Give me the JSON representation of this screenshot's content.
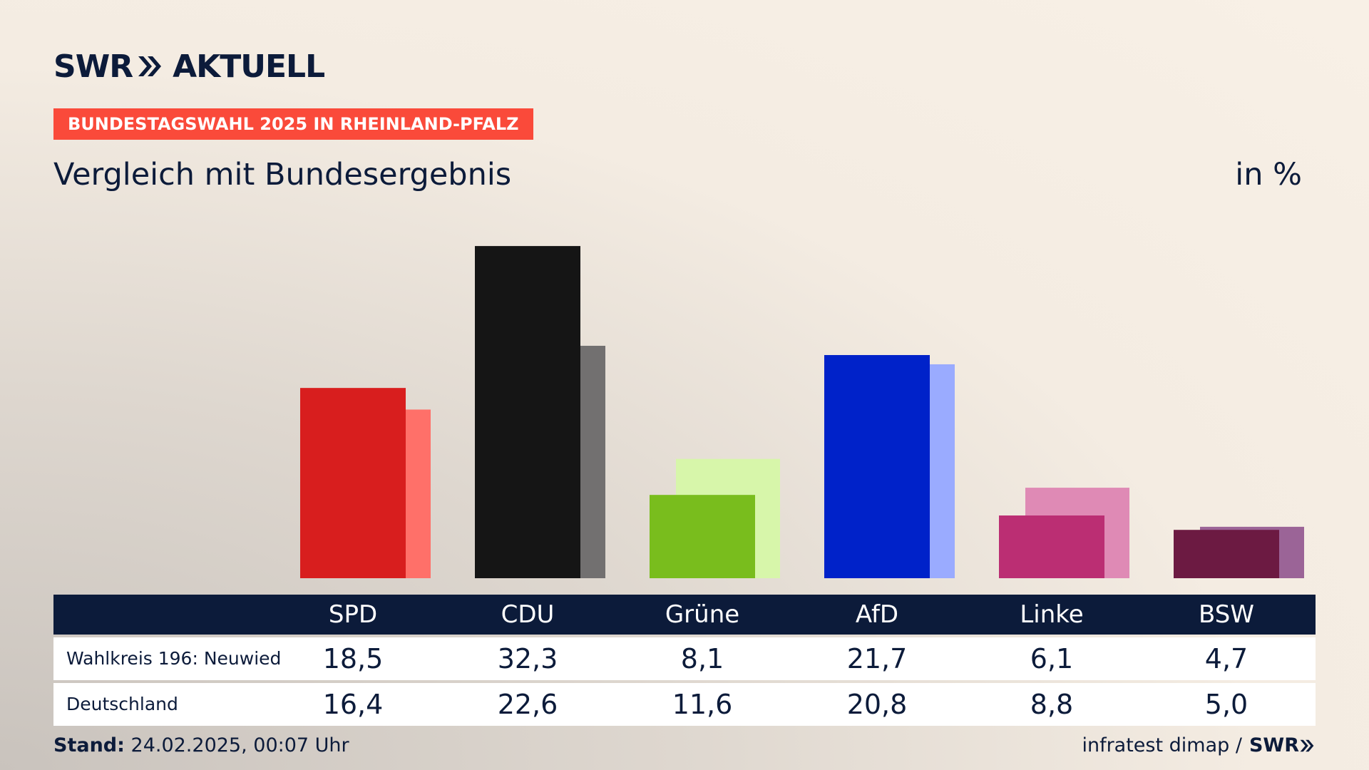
{
  "header": {
    "logo_left": "SWR",
    "logo_right": "AKTUELL",
    "tag": "BUNDESTAGSWAHL 2025 IN RHEINLAND-PFALZ",
    "title": "Vergleich mit Bundesergebnis",
    "unit": "in %"
  },
  "colors": {
    "navy": "#0c1b3a",
    "tag_red": "#fa4a3a"
  },
  "chart_data": {
    "type": "bar",
    "title": "Vergleich mit Bundesergebnis",
    "unit": "in %",
    "categories": [
      "SPD",
      "CDU",
      "Grüne",
      "AfD",
      "Linke",
      "BSW"
    ],
    "series": [
      {
        "name": "Wahlkreis 196: Neuwied",
        "values": [
          18.5,
          32.3,
          8.1,
          21.7,
          6.1,
          4.7
        ],
        "labels": [
          "18,5",
          "32,3",
          "8,1",
          "21,7",
          "6,1",
          "4,7"
        ],
        "colors": [
          "#d81e1e",
          "#151515",
          "#79bd1d",
          "#0022c9",
          "#bb2e73",
          "#6c1a42"
        ]
      },
      {
        "name": "Deutschland",
        "values": [
          16.4,
          22.6,
          11.6,
          20.8,
          8.8,
          5.0
        ],
        "labels": [
          "16,4",
          "22,6",
          "11,6",
          "20,8",
          "8,8",
          "5,0"
        ],
        "colors": [
          "#ff7069",
          "#727070",
          "#d7f6aa",
          "#9aabff",
          "#df8ab5",
          "#9b6497"
        ]
      }
    ],
    "ylim": [
      0,
      33
    ]
  },
  "footer": {
    "stand_label": "Stand:",
    "stand_value": "24.02.2025, 00:07 Uhr",
    "source": "infratest dimap /",
    "source_logo": "SWR"
  }
}
